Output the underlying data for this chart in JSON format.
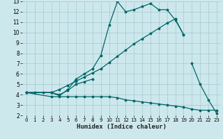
{
  "xlabel": "Humidex (Indice chaleur)",
  "xlim": [
    -0.5,
    23.5
  ],
  "ylim": [
    2,
    13
  ],
  "xticks": [
    0,
    1,
    2,
    3,
    4,
    5,
    6,
    7,
    8,
    9,
    10,
    11,
    12,
    13,
    14,
    15,
    16,
    17,
    18,
    19,
    20,
    21,
    22,
    23
  ],
  "yticks": [
    2,
    3,
    4,
    5,
    6,
    7,
    8,
    9,
    10,
    11,
    12,
    13
  ],
  "bg_color": "#cde8ed",
  "grid_color": "#aacdd5",
  "line_color": "#006666",
  "line1_x": [
    0,
    1,
    2,
    3,
    4,
    5,
    6,
    7,
    8,
    9,
    10,
    11,
    12,
    13,
    14,
    15,
    16,
    17,
    18,
    19
  ],
  "line1_y": [
    4.2,
    4.2,
    4.2,
    4.2,
    3.9,
    4.5,
    5.5,
    6.0,
    6.5,
    7.8,
    10.7,
    13.0,
    12.0,
    12.2,
    12.5,
    12.8,
    12.2,
    12.2,
    11.2,
    9.8
  ],
  "line2_x": [
    0,
    3,
    4,
    5,
    6,
    7,
    8
  ],
  "line2_y": [
    4.2,
    4.2,
    4.0,
    4.4,
    5.0,
    5.25,
    5.5
  ],
  "line3_x": [
    0,
    3,
    4,
    5,
    6,
    7,
    8,
    9,
    10,
    11,
    12,
    13,
    14,
    15,
    16,
    17,
    18,
    19
  ],
  "line3_y": [
    4.2,
    4.2,
    4.5,
    4.9,
    5.3,
    5.7,
    6.1,
    6.5,
    7.1,
    7.7,
    8.3,
    8.9,
    9.4,
    9.9,
    10.4,
    10.9,
    11.3,
    9.8
  ],
  "line4_x": [
    0,
    3,
    4,
    5,
    6,
    7,
    8,
    9,
    10,
    11,
    12,
    13,
    14,
    15,
    16,
    17,
    18,
    19,
    20,
    21,
    22,
    23
  ],
  "line4_y": [
    4.2,
    3.8,
    3.8,
    3.8,
    3.8,
    3.8,
    3.8,
    3.8,
    3.8,
    3.7,
    3.5,
    3.4,
    3.3,
    3.2,
    3.1,
    3.0,
    2.9,
    2.8,
    2.6,
    2.5,
    2.5,
    2.5
  ],
  "line5_x": [
    20,
    21,
    22,
    23
  ],
  "line5_y": [
    7.0,
    5.0,
    3.5,
    2.2
  ]
}
